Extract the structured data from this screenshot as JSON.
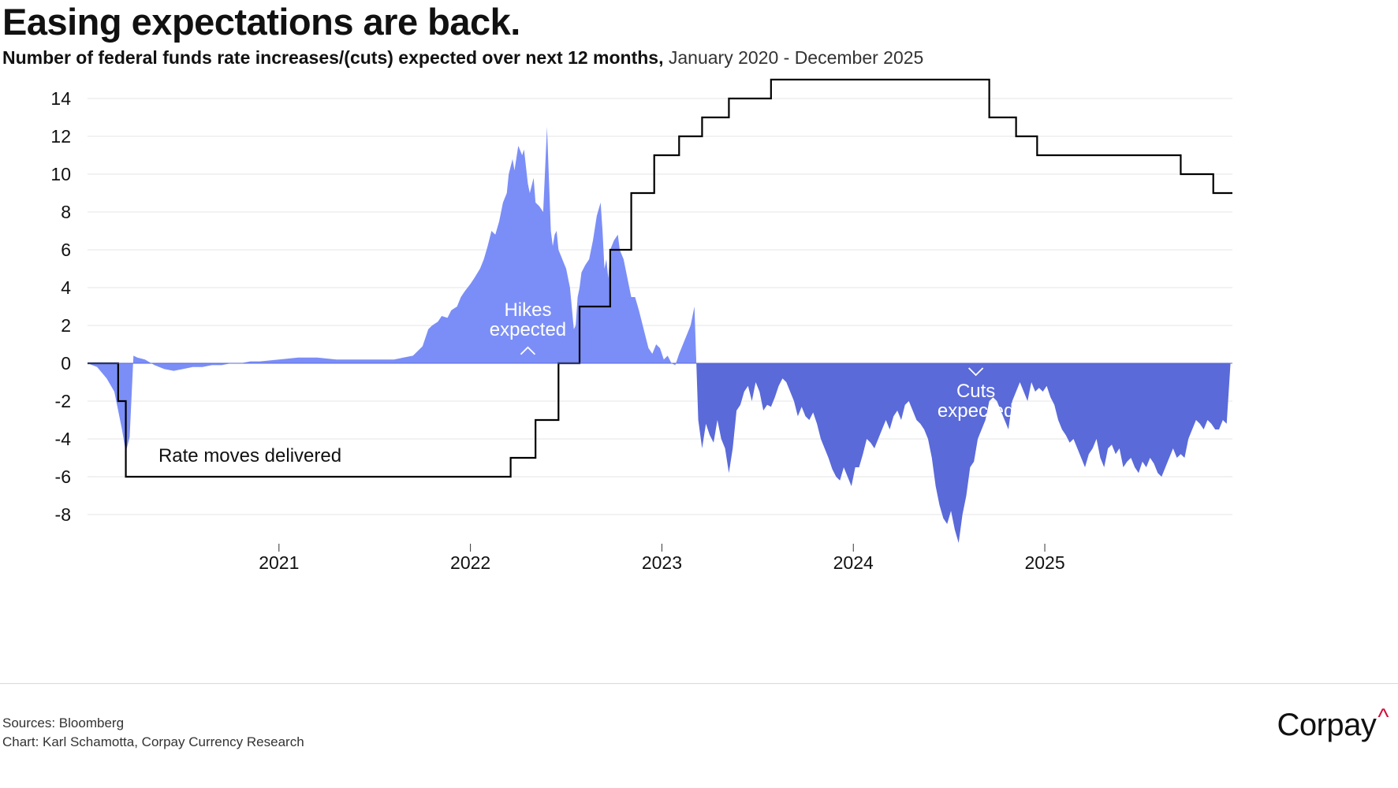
{
  "header": {
    "title": "Easing expectations are back.",
    "subtitle_bold": "Number of federal funds rate increases/(cuts) expected over next 12 months,",
    "subtitle_normal": " January 2020 - December 2025"
  },
  "footer": {
    "sources": "Sources: Bloomberg",
    "credit": "Chart: Karl Schamotta, Corpay Currency Research",
    "logo_text": "Corpay",
    "logo_mark": "^"
  },
  "colors": {
    "hikes": "#7b8ef7",
    "cuts": "#5a6ad8",
    "line": "#000000",
    "grid": "#e6e6e6",
    "logo_mark": "#d0103a"
  },
  "chart_data": {
    "type": "area",
    "title": "Easing expectations are back.",
    "subtitle": "Number of federal funds rate increases/(cuts) expected over next 12 months, January 2020 - December 2025",
    "xlim": [
      2020.0,
      2025.98
    ],
    "ylim": [
      -9.7,
      15.3
    ],
    "grid": true,
    "y_ticks": [
      14,
      12,
      10,
      8,
      6,
      4,
      2,
      0,
      -2,
      -4,
      -6,
      -8
    ],
    "x_ticks": [
      {
        "value": 2021,
        "label": "2021"
      },
      {
        "value": 2022,
        "label": "2022"
      },
      {
        "value": 2023,
        "label": "2023"
      },
      {
        "value": 2024,
        "label": "2024"
      },
      {
        "value": 2025,
        "label": "2025"
      }
    ],
    "annotations": {
      "hikes": {
        "line1": "Hikes",
        "line2": "expected",
        "x": 2022.3,
        "y": 1.3
      },
      "cuts": {
        "line1": "Cuts",
        "line2": "expected",
        "x": 2024.64,
        "y": -1.5
      },
      "rate_moves": {
        "text": "Rate moves delivered",
        "x": 2020.7,
        "y": -5.3
      }
    },
    "series": [
      {
        "name": "Hikes expected",
        "kind": "area",
        "x": [
          2020.0,
          2020.05,
          2020.1,
          2020.14,
          2020.16,
          2020.18,
          2020.2,
          2020.22,
          2020.24,
          2020.26,
          2020.3,
          2020.35,
          2020.4,
          2020.45,
          2020.5,
          2020.55,
          2020.6,
          2020.65,
          2020.7,
          2020.75,
          2020.8,
          2020.85,
          2020.9,
          2021.0,
          2021.1,
          2021.2,
          2021.3,
          2021.4,
          2021.5,
          2021.6,
          2021.65,
          2021.7,
          2021.75,
          2021.78,
          2021.8,
          2021.83,
          2021.85,
          2021.88,
          2021.9,
          2021.93,
          2021.95,
          2021.97,
          2022.0,
          2022.02,
          2022.05,
          2022.07,
          2022.09,
          2022.11,
          2022.13,
          2022.15,
          2022.17,
          2022.19,
          2022.2,
          2022.22,
          2022.23,
          2022.25,
          2022.27,
          2022.28,
          2022.3,
          2022.31,
          2022.33,
          2022.34,
          2022.36,
          2022.38,
          2022.4,
          2022.42,
          2022.43,
          2022.44,
          2022.45,
          2022.46,
          2022.48,
          2022.5,
          2022.52,
          2022.54,
          2022.55,
          2022.56,
          2022.57,
          2022.58,
          2022.6,
          2022.62,
          2022.64,
          2022.66,
          2022.68,
          2022.69,
          2022.7,
          2022.71,
          2022.72,
          2022.73,
          2022.75,
          2022.77,
          2022.78,
          2022.8,
          2022.82,
          2022.84,
          2022.86,
          2022.88,
          2022.9,
          2022.92,
          2022.93,
          2022.95,
          2022.97,
          2022.99,
          2023.01,
          2023.03,
          2023.05,
          2023.07,
          2023.09,
          2023.11,
          2023.13,
          2023.15,
          2023.17,
          2023.18
        ],
        "y": [
          0,
          -0.2,
          -0.8,
          -1.5,
          -2.5,
          -3.5,
          -4.7,
          -3.9,
          0.4,
          0.3,
          0.2,
          -0.1,
          -0.3,
          -0.4,
          -0.3,
          -0.2,
          -0.2,
          -0.1,
          -0.1,
          0.0,
          0.0,
          0.1,
          0.1,
          0.2,
          0.3,
          0.3,
          0.2,
          0.2,
          0.2,
          0.2,
          0.3,
          0.4,
          0.9,
          1.8,
          2.0,
          2.2,
          2.5,
          2.4,
          2.8,
          3.0,
          3.5,
          3.8,
          4.2,
          4.5,
          5.0,
          5.5,
          6.2,
          7.0,
          6.8,
          7.5,
          8.5,
          9.0,
          10.0,
          10.8,
          10.2,
          11.5,
          11.0,
          11.3,
          9.5,
          9.0,
          9.8,
          8.5,
          8.3,
          8.0,
          12.5,
          7.0,
          6.2,
          6.8,
          7.0,
          6.0,
          5.5,
          5.0,
          4.0,
          1.8,
          2.0,
          3.5,
          4.0,
          4.8,
          5.2,
          5.5,
          6.5,
          7.8,
          8.5,
          7.0,
          5.0,
          5.5,
          4.5,
          6.0,
          6.5,
          6.8,
          6.0,
          5.5,
          4.5,
          3.5,
          3.5,
          2.8,
          2.0,
          1.2,
          0.8,
          0.5,
          1.0,
          0.8,
          0.2,
          0.4,
          0.0,
          -0.1,
          0.5,
          1.0,
          1.5,
          2.0,
          3.0,
          0
        ]
      },
      {
        "name": "Cuts expected",
        "kind": "area",
        "x": [
          2023.18,
          2023.19,
          2023.21,
          2023.23,
          2023.25,
          2023.27,
          2023.29,
          2023.31,
          2023.33,
          2023.35,
          2023.37,
          2023.39,
          2023.41,
          2023.43,
          2023.45,
          2023.47,
          2023.49,
          2023.51,
          2023.53,
          2023.55,
          2023.57,
          2023.59,
          2023.61,
          2023.63,
          2023.65,
          2023.67,
          2023.69,
          2023.71,
          2023.73,
          2023.75,
          2023.77,
          2023.79,
          2023.81,
          2023.83,
          2023.85,
          2023.87,
          2023.89,
          2023.91,
          2023.93,
          2023.95,
          2023.97,
          2023.99,
          2024.01,
          2024.03,
          2024.05,
          2024.07,
          2024.09,
          2024.11,
          2024.13,
          2024.15,
          2024.17,
          2024.19,
          2024.21,
          2024.23,
          2024.25,
          2024.27,
          2024.29,
          2024.31,
          2024.33,
          2024.35,
          2024.37,
          2024.39,
          2024.41,
          2024.43,
          2024.45,
          2024.47,
          2024.49,
          2024.51,
          2024.53,
          2024.55,
          2024.57,
          2024.59,
          2024.61,
          2024.63,
          2024.65,
          2024.67,
          2024.69,
          2024.71,
          2024.73,
          2024.75,
          2024.77,
          2024.79,
          2024.81,
          2024.83,
          2024.85,
          2024.87,
          2024.89,
          2024.91,
          2024.93,
          2024.95,
          2024.97,
          2024.99,
          2025.01,
          2025.03,
          2025.05,
          2025.07,
          2025.09,
          2025.11,
          2025.13,
          2025.15,
          2025.17,
          2025.19,
          2025.21,
          2025.23,
          2025.25,
          2025.27,
          2025.29,
          2025.31,
          2025.33,
          2025.35,
          2025.37,
          2025.39,
          2025.41,
          2025.43,
          2025.45,
          2025.47,
          2025.49,
          2025.51,
          2025.53,
          2025.55,
          2025.57,
          2025.59,
          2025.61,
          2025.63,
          2025.65,
          2025.67,
          2025.69,
          2025.71,
          2025.73,
          2025.75,
          2025.77,
          2025.79,
          2025.81,
          2025.83,
          2025.85,
          2025.87,
          2025.89,
          2025.91,
          2025.93,
          2025.95,
          2025.97,
          2025.98
        ],
        "y": [
          0,
          -3.0,
          -4.5,
          -3.2,
          -3.8,
          -4.2,
          -3.0,
          -4.0,
          -4.5,
          -5.8,
          -4.5,
          -2.5,
          -2.2,
          -1.5,
          -1.2,
          -2.0,
          -1.0,
          -1.5,
          -2.5,
          -2.2,
          -2.3,
          -1.8,
          -1.2,
          -0.8,
          -1.0,
          -1.5,
          -2.0,
          -2.8,
          -2.3,
          -2.8,
          -3.0,
          -2.6,
          -3.2,
          -4.0,
          -4.5,
          -5.0,
          -5.6,
          -6.0,
          -6.2,
          -5.5,
          -6.0,
          -6.5,
          -5.5,
          -5.5,
          -4.8,
          -4.0,
          -4.2,
          -4.5,
          -4.0,
          -3.5,
          -3.0,
          -3.5,
          -2.8,
          -2.5,
          -3.0,
          -2.2,
          -2.0,
          -2.5,
          -3.0,
          -3.2,
          -3.5,
          -4.0,
          -5.0,
          -6.5,
          -7.5,
          -8.2,
          -8.5,
          -7.8,
          -8.8,
          -9.5,
          -8.0,
          -7.0,
          -5.5,
          -5.2,
          -4.0,
          -3.5,
          -3.0,
          -2.0,
          -1.8,
          -2.0,
          -2.5,
          -3.0,
          -3.5,
          -2.0,
          -1.5,
          -1.0,
          -1.5,
          -2.0,
          -1.0,
          -1.5,
          -1.3,
          -1.5,
          -1.2,
          -1.8,
          -2.2,
          -3.0,
          -3.5,
          -3.8,
          -4.2,
          -4.0,
          -4.5,
          -5.0,
          -5.5,
          -4.8,
          -4.5,
          -4.0,
          -5.0,
          -5.5,
          -4.5,
          -4.3,
          -4.8,
          -4.5,
          -5.5,
          -5.2,
          -5.0,
          -5.5,
          -5.8,
          -5.2,
          -5.5,
          -5.0,
          -5.3,
          -5.8,
          -6.0,
          -5.5,
          -5.0,
          -4.5,
          -5.0,
          -4.8,
          -5.0,
          -4.0,
          -3.5,
          -3.0,
          -3.2,
          -3.5,
          -3.0,
          -3.2,
          -3.5,
          -3.5,
          -3.0,
          -3.2,
          0,
          0
        ]
      },
      {
        "name": "Rate moves delivered",
        "kind": "step",
        "x": [
          2020.0,
          2020.16,
          2020.16,
          2020.2,
          2020.2,
          2022.21,
          2022.21,
          2022.34,
          2022.34,
          2022.46,
          2022.46,
          2022.57,
          2022.57,
          2022.73,
          2022.73,
          2022.84,
          2022.84,
          2022.96,
          2022.96,
          2023.09,
          2023.09,
          2023.21,
          2023.21,
          2023.35,
          2023.35,
          2023.57,
          2023.57,
          2024.71,
          2024.71,
          2024.85,
          2024.85,
          2024.96,
          2024.96,
          2025.71,
          2025.71,
          2025.88,
          2025.88,
          2025.98
        ],
        "y": [
          0,
          0,
          -2,
          -2,
          -6,
          -6,
          -5,
          -5,
          -3,
          -3,
          0,
          0,
          3,
          3,
          6,
          6,
          9,
          9,
          11,
          11,
          12,
          12,
          13,
          13,
          14,
          14,
          15,
          15,
          13,
          13,
          12,
          12,
          11,
          11,
          10,
          10,
          9,
          9
        ]
      }
    ]
  }
}
